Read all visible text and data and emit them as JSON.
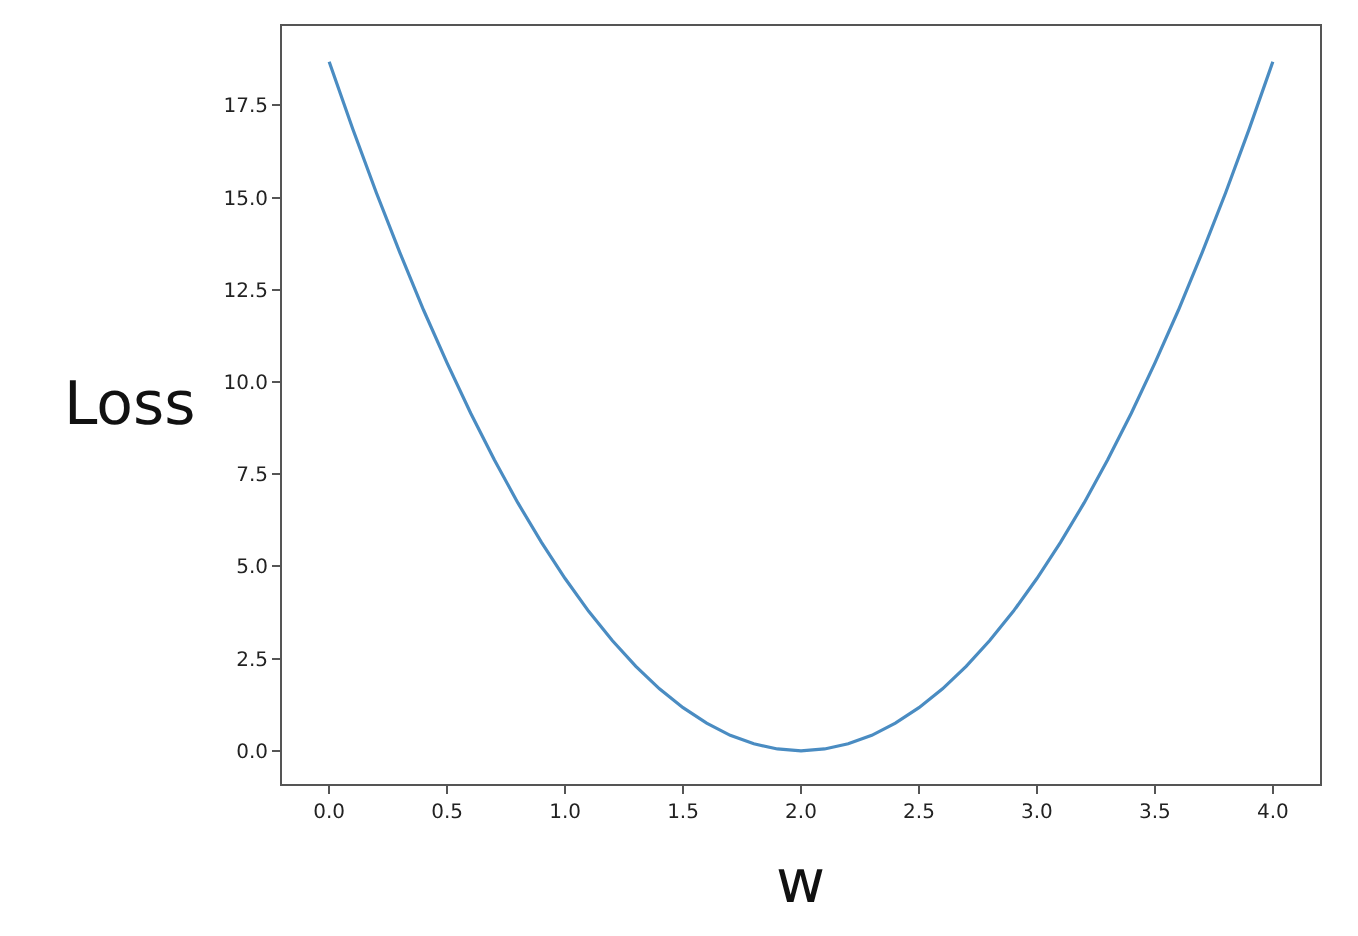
{
  "chart_data": {
    "type": "line",
    "xlabel": "w",
    "ylabel": "Loss",
    "x": [
      0,
      0.1,
      0.2,
      0.3,
      0.4,
      0.5,
      0.6,
      0.7,
      0.8,
      0.9,
      1.0,
      1.1,
      1.2,
      1.3,
      1.4,
      1.5,
      1.6,
      1.7,
      1.8,
      1.9,
      2.0,
      2.1,
      2.2,
      2.3,
      2.4,
      2.5,
      2.6,
      2.7,
      2.8,
      2.9,
      3.0,
      3.1,
      3.2,
      3.3,
      3.4,
      3.5,
      3.6,
      3.7,
      3.8,
      3.9,
      4.0
    ],
    "series": [
      {
        "color": "#4a8cc2",
        "values": [
          18.68,
          16.86,
          15.13,
          13.5,
          11.95,
          10.51,
          9.15,
          7.89,
          6.72,
          5.65,
          4.67,
          3.78,
          2.99,
          2.29,
          1.68,
          1.17,
          0.75,
          0.42,
          0.19,
          0.05,
          0,
          0.05,
          0.19,
          0.42,
          0.75,
          1.17,
          1.68,
          2.29,
          2.99,
          3.78,
          4.67,
          5.65,
          6.72,
          7.89,
          9.15,
          10.51,
          11.95,
          13.5,
          15.13,
          16.86,
          18.68
        ]
      }
    ],
    "xlim": [
      -0.2,
      4.2
    ],
    "ylim": [
      -0.9,
      19.65
    ],
    "xticks": [
      {
        "value": 0,
        "label": "0.0"
      },
      {
        "value": 0.5,
        "label": "0.5"
      },
      {
        "value": 1,
        "label": "1.0"
      },
      {
        "value": 1.5,
        "label": "1.5"
      },
      {
        "value": 2,
        "label": "2.0"
      },
      {
        "value": 2.5,
        "label": "2.5"
      },
      {
        "value": 3,
        "label": "3.0"
      },
      {
        "value": 3.5,
        "label": "3.5"
      },
      {
        "value": 4,
        "label": "4.0"
      }
    ],
    "yticks": [
      {
        "value": 0,
        "label": "0.0"
      },
      {
        "value": 2.5,
        "label": "2.5"
      },
      {
        "value": 5,
        "label": "5.0"
      },
      {
        "value": 7.5,
        "label": "7.5"
      },
      {
        "value": 10,
        "label": "10.0"
      },
      {
        "value": 12.5,
        "label": "12.5"
      },
      {
        "value": 15,
        "label": "15.0"
      },
      {
        "value": 17.5,
        "label": "17.5"
      }
    ],
    "line_style": "solid",
    "marker": "none"
  }
}
